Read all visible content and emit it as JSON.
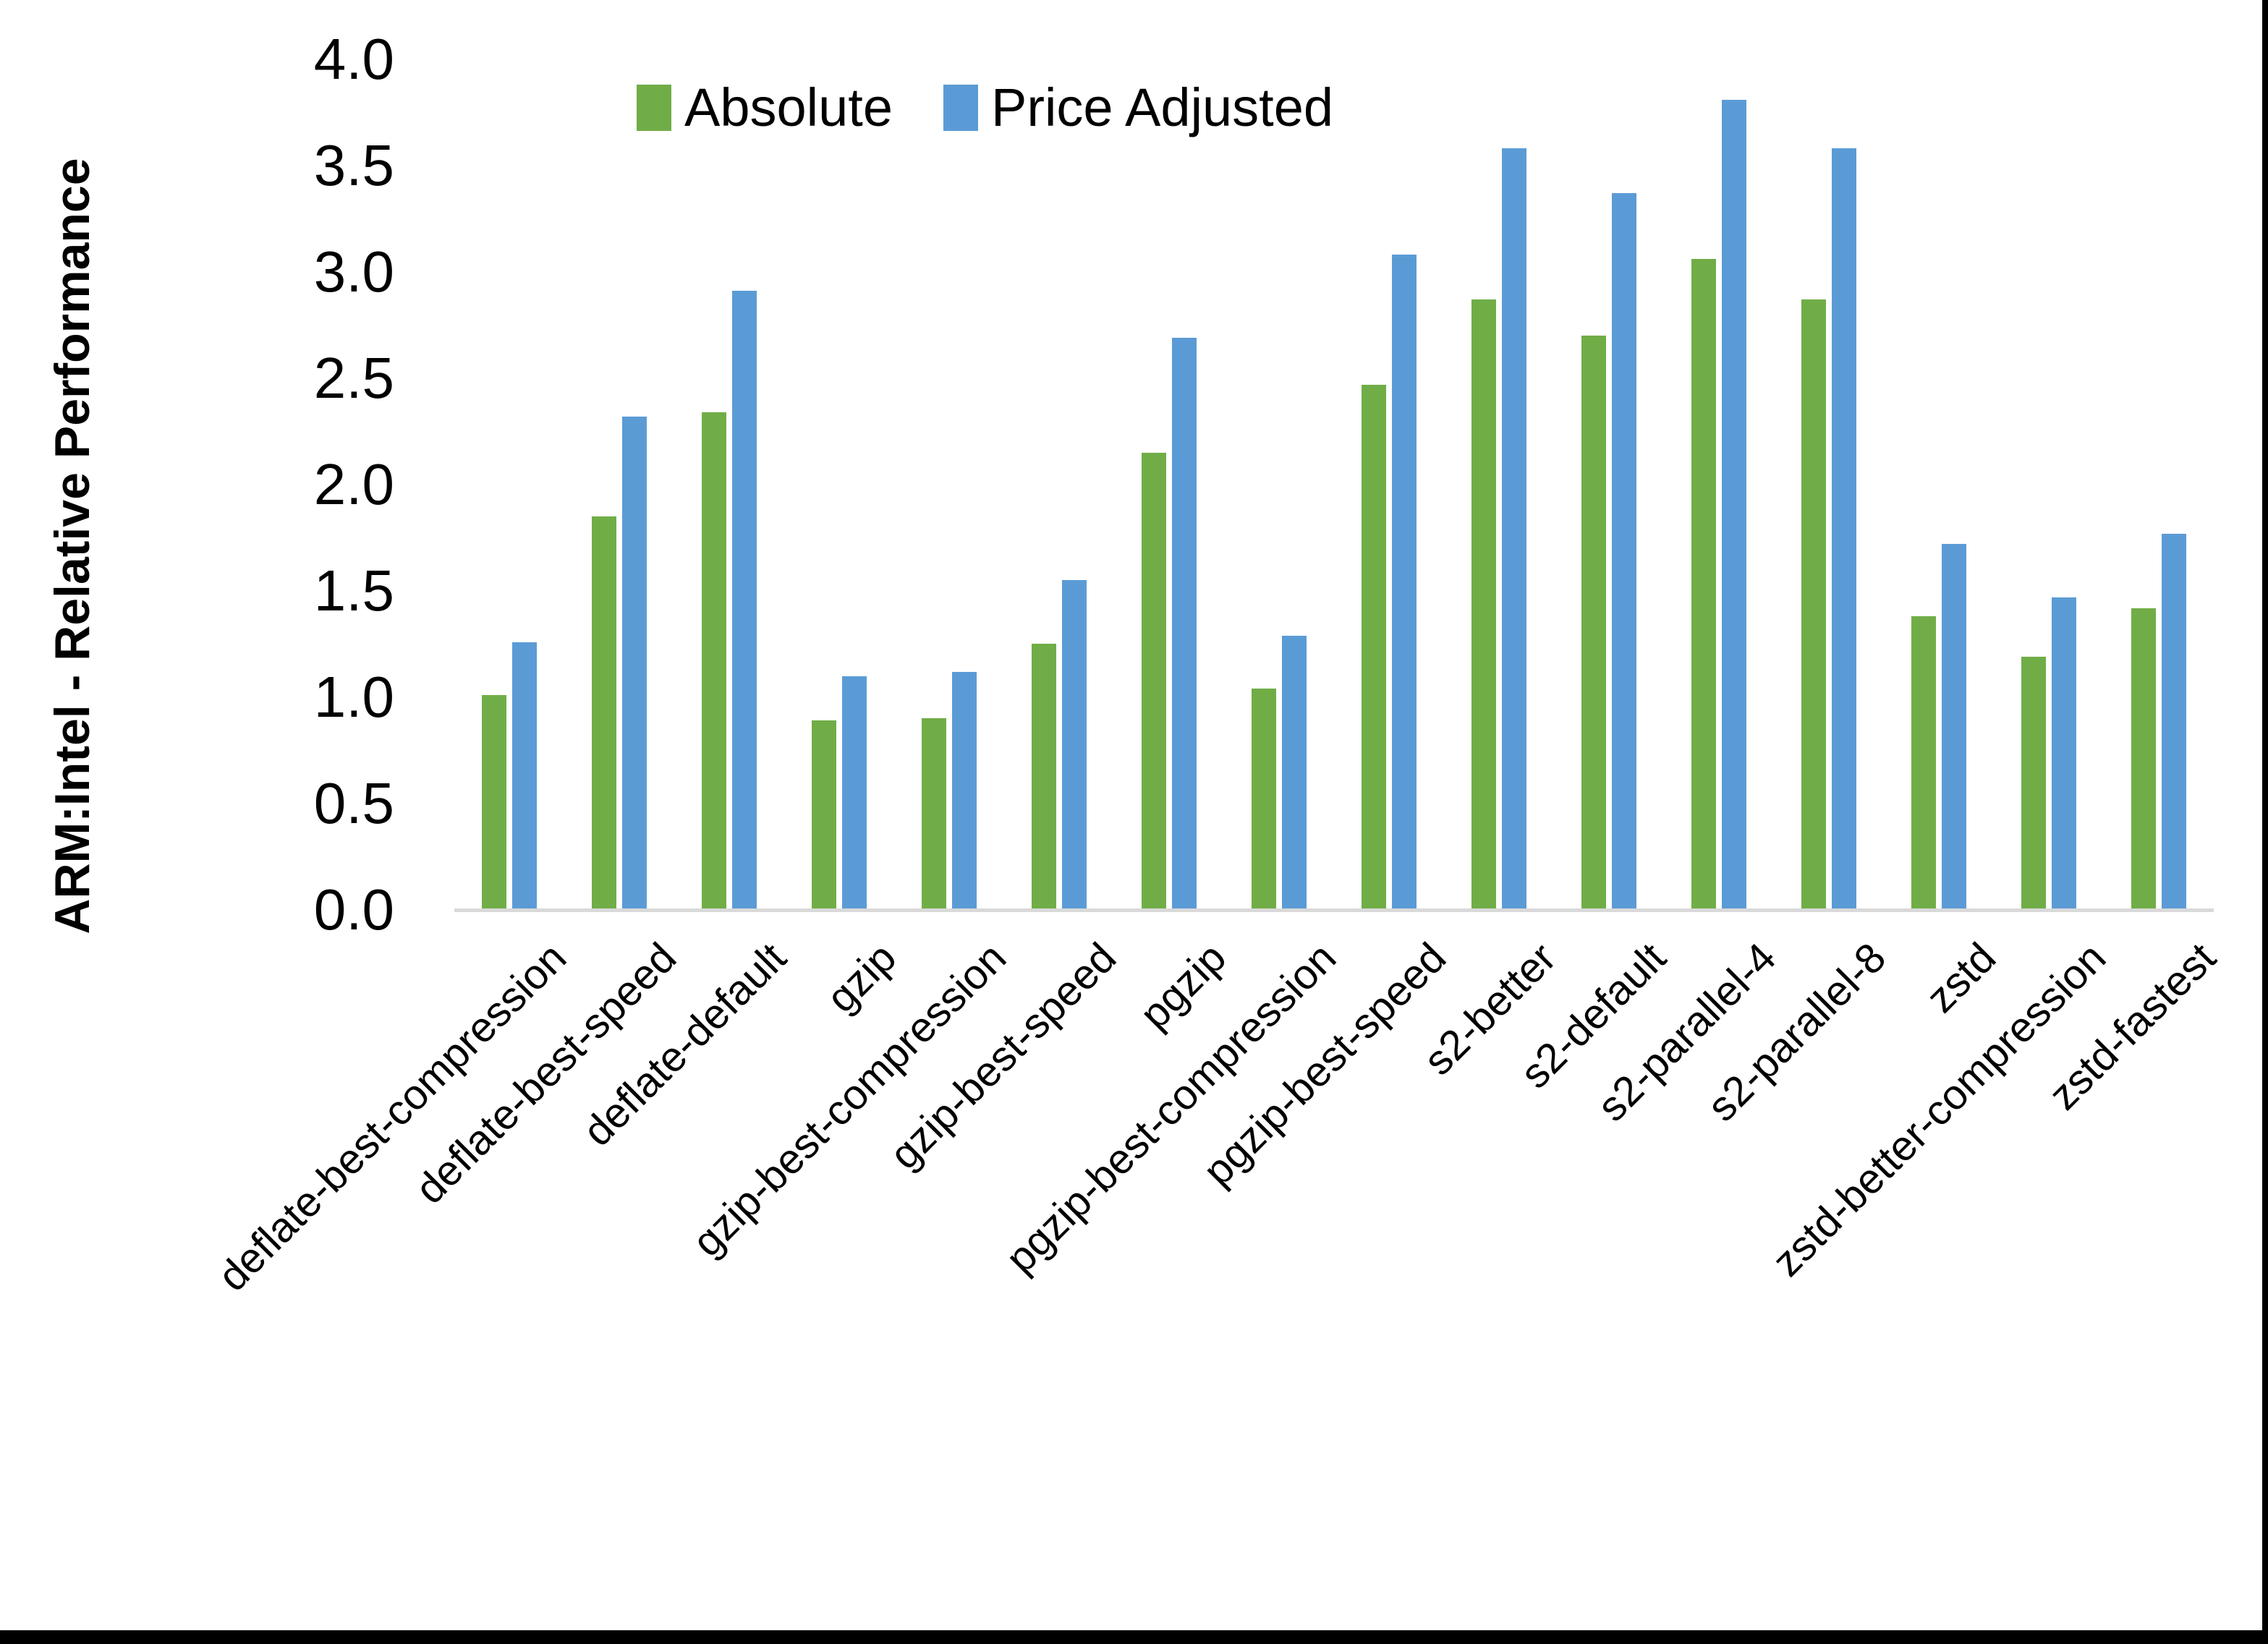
{
  "chart_data": {
    "type": "bar",
    "title": "",
    "ylabel": "ARM:Intel - Relative Performance",
    "xlabel": "",
    "ylim": [
      0.0,
      4.0
    ],
    "ytick_step": 0.5,
    "yticks": [
      "0.0",
      "0.5",
      "1.0",
      "1.5",
      "2.0",
      "2.5",
      "3.0",
      "3.5",
      "4.0"
    ],
    "grid": false,
    "legend_position": "top",
    "categories": [
      "deflate-best-compression",
      "deflate-best-speed",
      "deflate-default",
      "gzip",
      "gzip-best-compression",
      "gzip-best-speed",
      "pgzip",
      "pgzip-best-compression",
      "pgzip-best-speed",
      "s2-better",
      "s2-default",
      "s2-parallel-4",
      "s2-parallel-8",
      "zstd",
      "zstd-better-compression",
      "zstd-fastest"
    ],
    "series": [
      {
        "name": "Absolute",
        "color": "#70AD47",
        "values": [
          1.01,
          1.85,
          2.34,
          0.89,
          0.9,
          1.25,
          2.15,
          1.04,
          2.47,
          2.87,
          2.7,
          3.06,
          2.87,
          1.38,
          1.19,
          1.42
        ]
      },
      {
        "name": "Price Adjusted",
        "color": "#5B9BD5",
        "values": [
          1.26,
          2.32,
          2.91,
          1.1,
          1.12,
          1.55,
          2.69,
          1.29,
          3.08,
          3.58,
          3.37,
          3.81,
          3.58,
          1.72,
          1.47,
          1.77
        ]
      }
    ],
    "axis_line_color": "#d9d9d9"
  }
}
